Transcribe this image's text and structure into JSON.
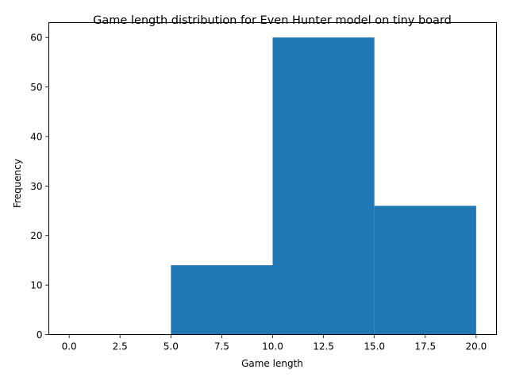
{
  "chart_data": {
    "type": "bar",
    "title": "Game length distribution for Even Hunter model on tiny board",
    "xlabel": "Game length",
    "ylabel": "Frequency",
    "xlim": [
      -1,
      21
    ],
    "ylim": [
      0,
      63
    ],
    "grid": false,
    "bar_color": "#1f77b4",
    "bins": [
      {
        "x0": 0,
        "x1": 5,
        "value": 0
      },
      {
        "x0": 5,
        "x1": 10,
        "value": 14
      },
      {
        "x0": 10,
        "x1": 15,
        "value": 60
      },
      {
        "x0": 15,
        "x1": 20,
        "value": 26
      }
    ],
    "x_ticks": [
      {
        "value": 0,
        "label": "0.0"
      },
      {
        "value": 2.5,
        "label": "2.5"
      },
      {
        "value": 5,
        "label": "5.0"
      },
      {
        "value": 7.5,
        "label": "7.5"
      },
      {
        "value": 10,
        "label": "10.0"
      },
      {
        "value": 12.5,
        "label": "12.5"
      },
      {
        "value": 15,
        "label": "15.0"
      },
      {
        "value": 17.5,
        "label": "17.5"
      },
      {
        "value": 20,
        "label": "20.0"
      }
    ],
    "y_ticks": [
      {
        "value": 0,
        "label": "0"
      },
      {
        "value": 10,
        "label": "10"
      },
      {
        "value": 20,
        "label": "20"
      },
      {
        "value": 30,
        "label": "30"
      },
      {
        "value": 40,
        "label": "40"
      },
      {
        "value": 50,
        "label": "50"
      },
      {
        "value": 60,
        "label": "60"
      }
    ]
  }
}
